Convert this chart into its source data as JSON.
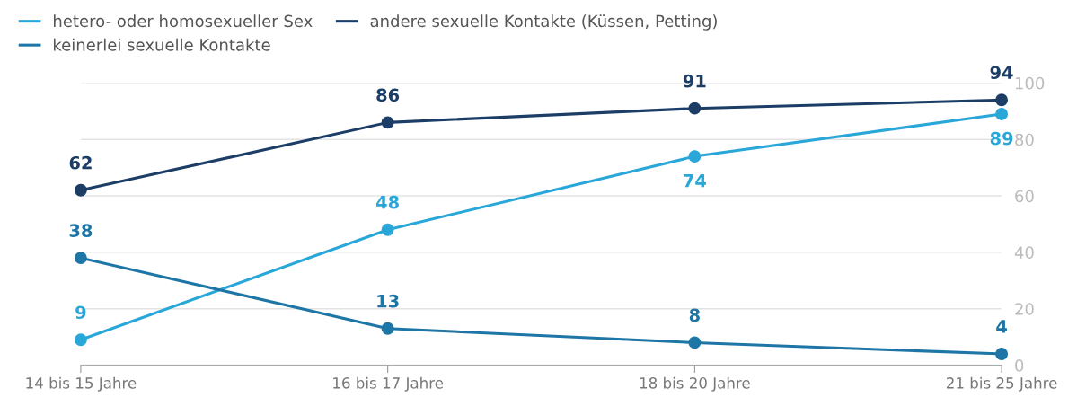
{
  "chart_data": {
    "type": "line",
    "categories": [
      "14 bis 15 Jahre",
      "16 bis 17 Jahre",
      "18 bis 20 Jahre",
      "21 bis 25 Jahre"
    ],
    "series": [
      {
        "name": "hetero- oder homosexueller Sex",
        "color": "#2aa7d9",
        "values": [
          9,
          48,
          74,
          89
        ]
      },
      {
        "name": "andere sexuelle Kontakte (Küssen, Petting)",
        "color": "#1b3d66",
        "values": [
          62,
          86,
          91,
          94
        ]
      },
      {
        "name": "keinerlei sexuelle Kontakte",
        "color": "#1d76a6",
        "values": [
          38,
          13,
          8,
          4
        ]
      }
    ],
    "ylim": [
      0,
      100
    ],
    "yticks": [
      0,
      20,
      40,
      60,
      80,
      100
    ],
    "grid": "y",
    "legend": "top left",
    "marker": "circle",
    "line_style": "solid",
    "data_labels": true
  }
}
